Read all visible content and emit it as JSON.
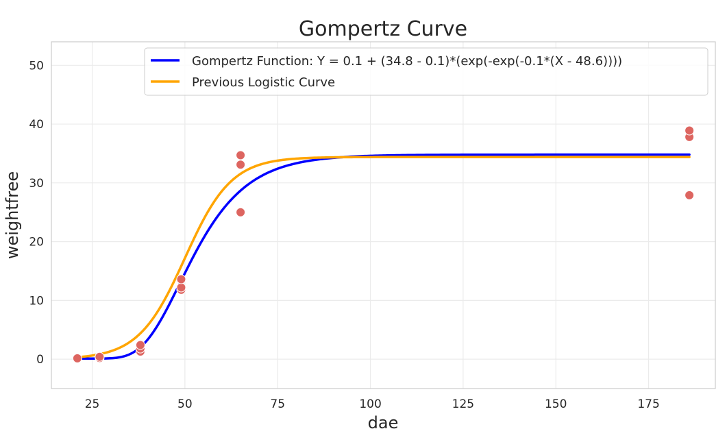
{
  "chart_data": {
    "type": "scatter",
    "title": "Gompertz Curve",
    "xlabel": "dae",
    "ylabel": "weightfree",
    "xlim": [
      14,
      193
    ],
    "ylim": [
      -5,
      54
    ],
    "xticks": [
      25,
      50,
      75,
      100,
      125,
      150,
      175
    ],
    "yticks": [
      0,
      10,
      20,
      30,
      40,
      50
    ],
    "grid": true,
    "legend_position": "top-right",
    "points": {
      "color": "#dd6560",
      "x": [
        21,
        21,
        27,
        27,
        38,
        38,
        38,
        49,
        49,
        49,
        65,
        65,
        65,
        186,
        186,
        186
      ],
      "y": [
        0.1,
        0.15,
        0.2,
        0.4,
        1.3,
        1.8,
        2.4,
        11.8,
        12.2,
        13.6,
        25.0,
        33.1,
        34.7,
        27.9,
        37.8,
        38.9
      ]
    },
    "series": [
      {
        "name": "Gompertz Function: Y = 0.1 + (34.8 - 0.1)*(exp(-exp(-0.1*(X - 48.6))))",
        "type": "line",
        "color": "#0000ff",
        "model": "gompertz",
        "params": {
          "a": 0.1,
          "b": 34.8,
          "k": 0.1,
          "x0": 48.6
        },
        "x_range": [
          21,
          186
        ]
      },
      {
        "name": "Previous Logistic Curve",
        "type": "line",
        "color": "#ffa500",
        "model": "logistic",
        "params": {
          "a": 0.0,
          "b": 34.4,
          "k": 0.16,
          "x0": 50.0
        },
        "x_range": [
          21,
          186
        ]
      }
    ]
  }
}
